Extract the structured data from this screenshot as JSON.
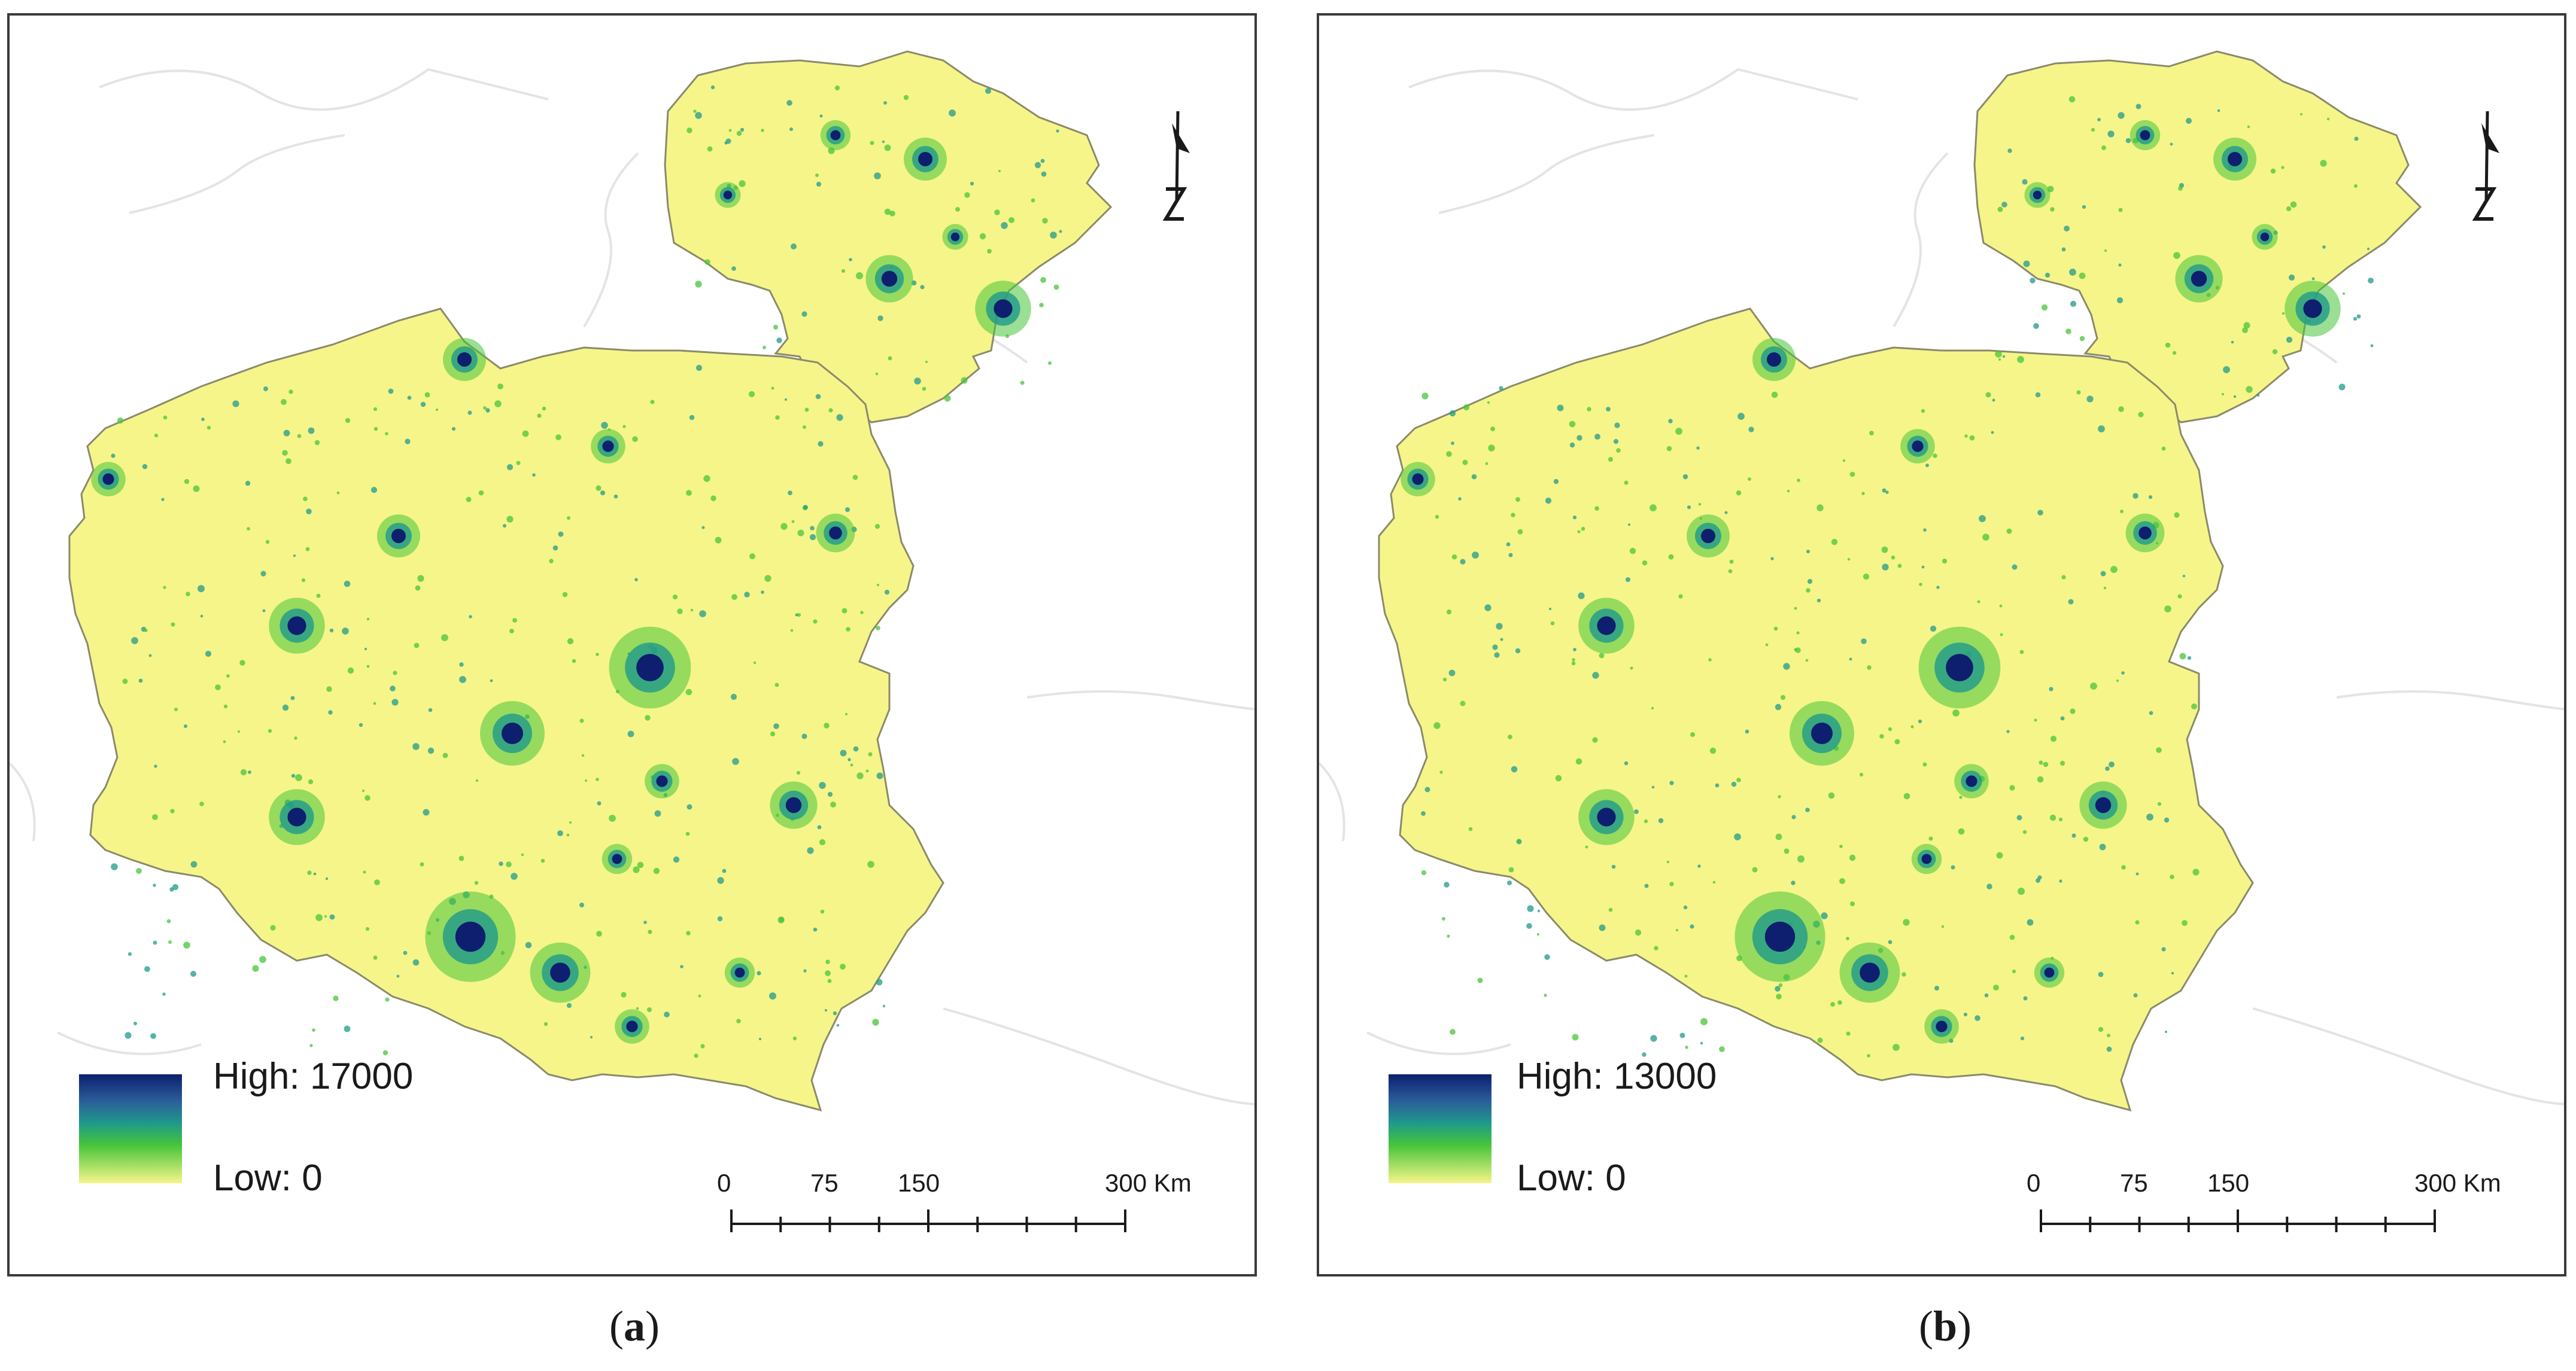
{
  "panels": [
    {
      "id": "a",
      "caption_letter": "a",
      "legend": {
        "high": "High: 17000",
        "low": "Low: 0"
      },
      "scale": {
        "ticks": [
          "0",
          "75",
          "150",
          "300 Km"
        ]
      },
      "north_arrow": "north-arrow-icon"
    },
    {
      "id": "b",
      "caption_letter": "b",
      "legend": {
        "high": "High: 13000",
        "low": "Low: 0"
      },
      "scale": {
        "ticks": [
          "0",
          "75",
          "150",
          "300 Km"
        ]
      },
      "north_arrow": "north-arrow-icon"
    }
  ],
  "colors": {
    "land": "#f6f58a",
    "high": "#0d1f6e",
    "mid": "#1f9a8a",
    "low_green": "#47c43a",
    "border": "#8a8a6a",
    "background_outline": "#e4e4e4"
  }
}
